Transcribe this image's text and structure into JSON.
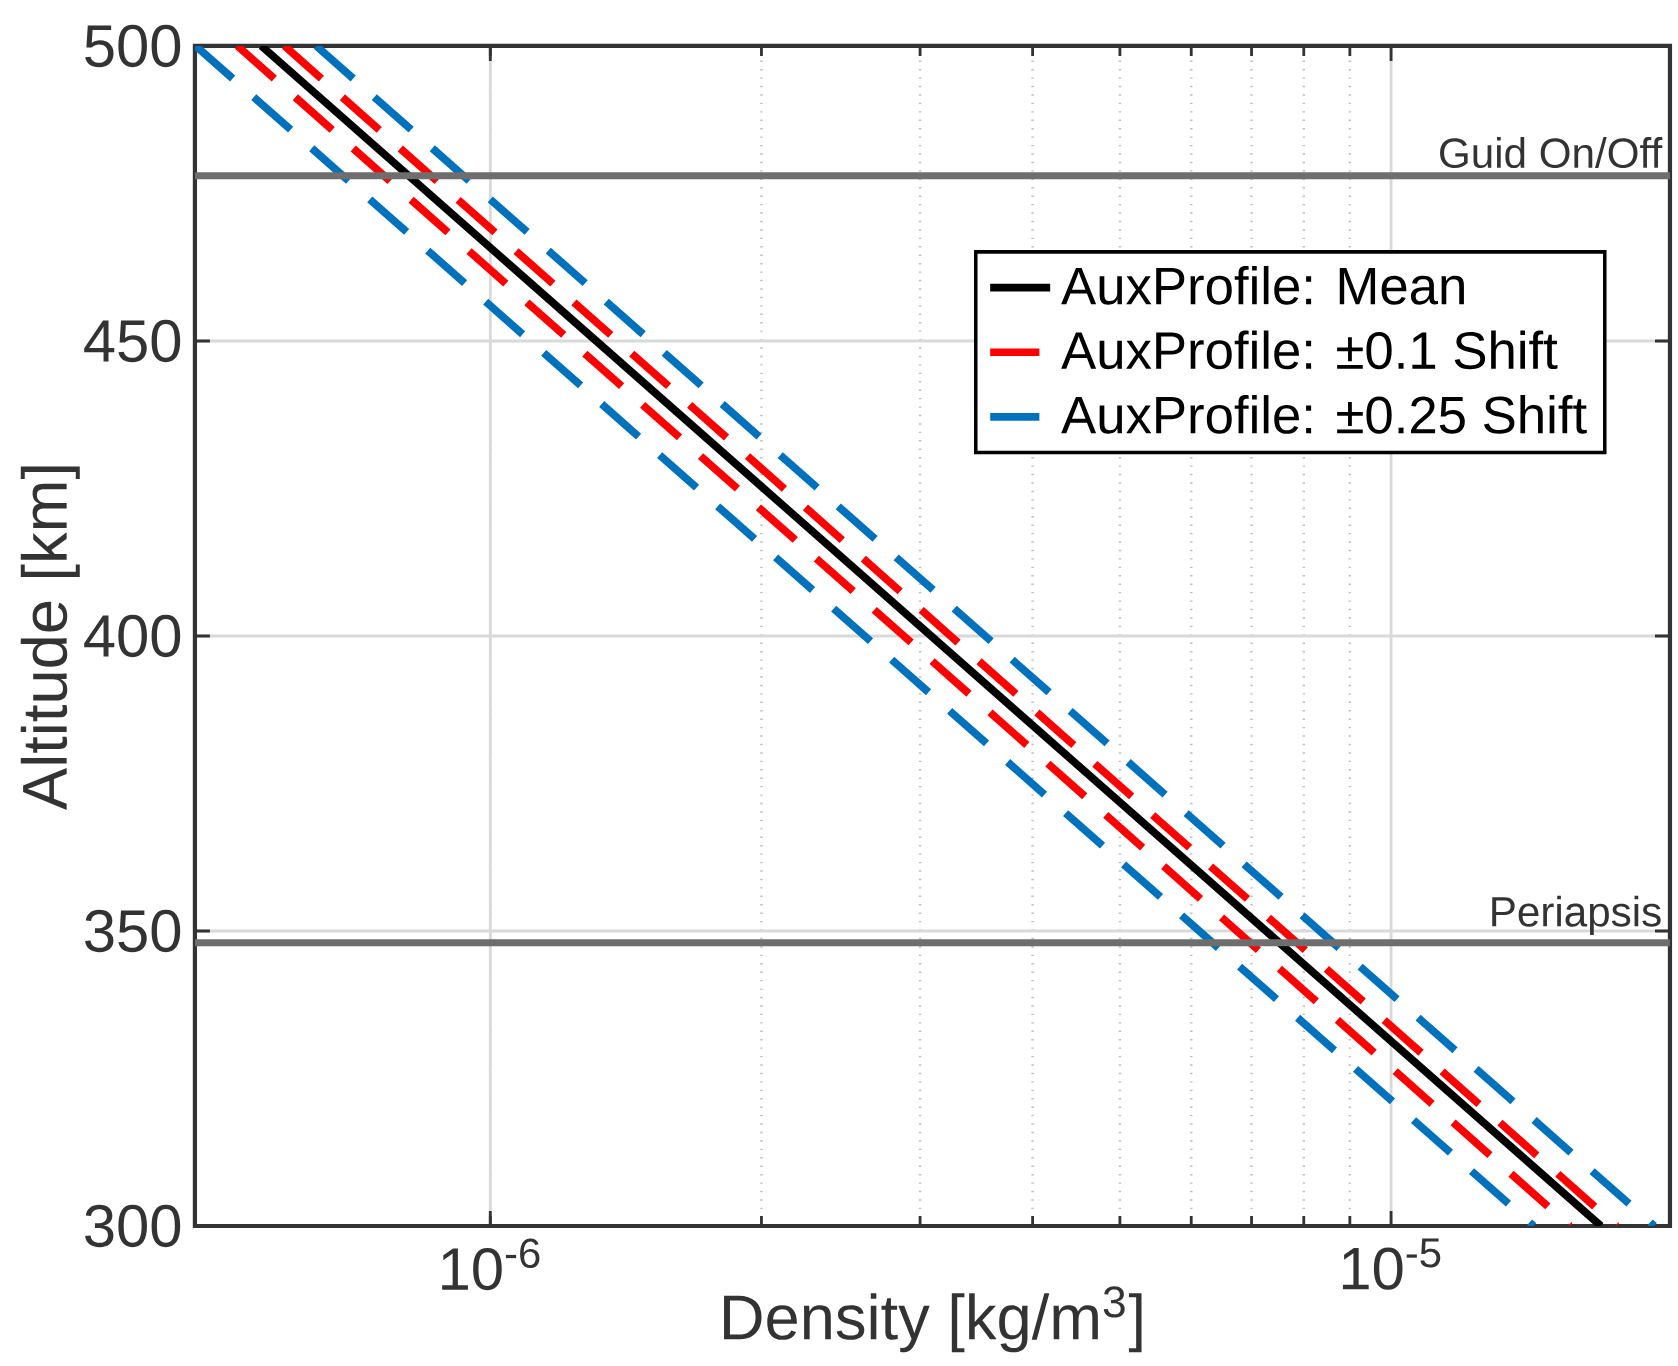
{
  "chart_data": {
    "type": "line",
    "xlabel": "Density [kg/m$^{3}$]",
    "ylabel": "Altitude [km]",
    "log": "x",
    "grid": true,
    "legend": "top right",
    "xlim": [
      4.7e-07,
      2.04e-05
    ],
    "ylim": [
      300,
      500
    ],
    "xticks": [
      {
        "value": 1e-06,
        "label": "10$^{-6}$"
      },
      {
        "value": 1e-05,
        "label": "10$^{-5}$"
      }
    ],
    "yticks": [
      300,
      350,
      400,
      450,
      500
    ],
    "series": [
      {
        "name": "AuxProfile: Mean",
        "color": "#000000",
        "line_style": "solid",
        "x": [
          5.57e-07,
          1.71e-05
        ],
        "values": [
          500,
          300
        ]
      },
      {
        "name": "AuxProfile: ±0.1 Shift",
        "color": "#ff0000",
        "line_style": "dashed",
        "x": [
          5.24e-07,
          1.58e-05
        ],
        "values": [
          500,
          300
        ]
      },
      {
        "color": "#ff0000",
        "line_style": "dashed",
        "x": [
          5.91e-07,
          1.78e-05
        ],
        "values": [
          500,
          300
        ]
      },
      {
        "name": "AuxProfile: ±0.25 Shift",
        "color": "#0072bd",
        "line_style": "dashed",
        "x": [
          4.71e-07,
          1.44e-05
        ],
        "values": [
          500,
          300
        ]
      },
      {
        "color": "#0072bd",
        "line_style": "dashed",
        "x": [
          6.41e-07,
          1.96e-05
        ],
        "values": [
          500,
          300
        ]
      }
    ],
    "ref_lines": [
      {
        "axis": "y",
        "value": 478,
        "label": "Guid On/Off",
        "color": "#6e6e6e"
      },
      {
        "axis": "y",
        "value": 348,
        "label": "Periapsis",
        "color": "#6e6e6e"
      }
    ]
  }
}
